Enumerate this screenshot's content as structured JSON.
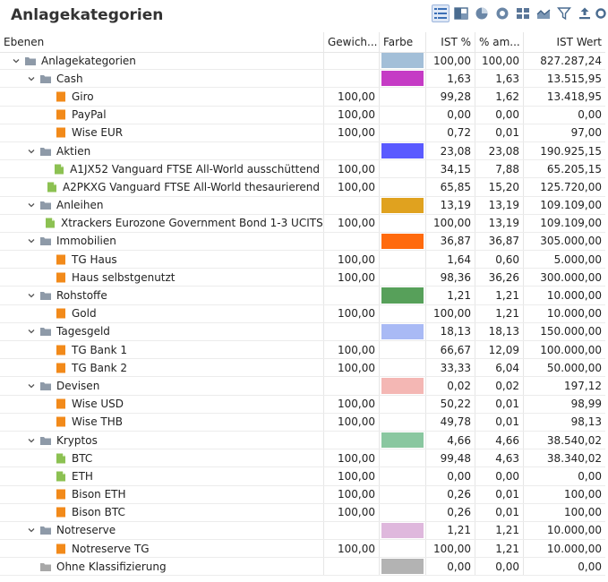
{
  "title": "Anlagekategorien",
  "toolbar": [
    {
      "name": "tree-view-icon",
      "active": true
    },
    {
      "name": "treemap-icon",
      "active": false
    },
    {
      "name": "pie-chart-icon",
      "active": false
    },
    {
      "name": "donut-chart-icon",
      "active": false
    },
    {
      "name": "grid-tiles-icon",
      "active": false
    },
    {
      "name": "area-chart-icon",
      "active": false
    },
    {
      "name": "filter-icon",
      "active": false
    },
    {
      "name": "export-icon",
      "active": false
    },
    {
      "name": "settings-icon",
      "active": false
    }
  ],
  "columns": {
    "name": "Ebenen",
    "weight": "Gewich...",
    "color": "Farbe",
    "ist": "IST %",
    "am": "% am...",
    "wert": "IST Wert"
  },
  "rows": [
    {
      "level": 0,
      "type": "folder",
      "expand": true,
      "name": "Anlagekategorien",
      "weight": "",
      "color": "#a3bfd8",
      "ist": "100,00",
      "am": "100,00",
      "wert": "827.287,24"
    },
    {
      "level": 1,
      "type": "folder",
      "expand": true,
      "name": "Cash",
      "weight": "",
      "color": "#c53bc5",
      "ist": "1,63",
      "am": "1,63",
      "wert": "13.515,95"
    },
    {
      "level": 2,
      "type": "account",
      "name": "Giro",
      "weight": "100,00",
      "color": "",
      "ist": "99,28",
      "am": "1,62",
      "wert": "13.418,95"
    },
    {
      "level": 2,
      "type": "account",
      "name": "PayPal",
      "weight": "100,00",
      "color": "",
      "ist": "0,00",
      "am": "0,00",
      "wert": "0,00"
    },
    {
      "level": 2,
      "type": "account",
      "name": "Wise EUR",
      "weight": "100,00",
      "color": "",
      "ist": "0,72",
      "am": "0,01",
      "wert": "97,00"
    },
    {
      "level": 1,
      "type": "folder",
      "expand": true,
      "name": "Aktien",
      "weight": "",
      "color": "#5a5aff",
      "ist": "23,08",
      "am": "23,08",
      "wert": "190.925,15"
    },
    {
      "level": 2,
      "type": "security",
      "name": "A1JX52 Vanguard FTSE All-World ausschüttend",
      "weight": "100,00",
      "color": "",
      "ist": "34,15",
      "am": "7,88",
      "wert": "65.205,15"
    },
    {
      "level": 2,
      "type": "security",
      "name": "A2PKXG Vanguard FTSE All-World thesaurierend",
      "weight": "100,00",
      "color": "",
      "ist": "65,85",
      "am": "15,20",
      "wert": "125.720,00"
    },
    {
      "level": 1,
      "type": "folder",
      "expand": true,
      "name": "Anleihen",
      "weight": "",
      "color": "#e0a21f",
      "ist": "13,19",
      "am": "13,19",
      "wert": "109.109,00"
    },
    {
      "level": 2,
      "type": "security",
      "name": "Xtrackers Eurozone Government Bond 1-3 UCITS",
      "weight": "100,00",
      "color": "",
      "ist": "100,00",
      "am": "13,19",
      "wert": "109.109,00"
    },
    {
      "level": 1,
      "type": "folder",
      "expand": true,
      "name": "Immobilien",
      "weight": "",
      "color": "#ff6a0d",
      "ist": "36,87",
      "am": "36,87",
      "wert": "305.000,00"
    },
    {
      "level": 2,
      "type": "account",
      "name": "TG Haus",
      "weight": "100,00",
      "color": "",
      "ist": "1,64",
      "am": "0,60",
      "wert": "5.000,00"
    },
    {
      "level": 2,
      "type": "account",
      "name": "Haus selbstgenutzt",
      "weight": "100,00",
      "color": "",
      "ist": "98,36",
      "am": "36,26",
      "wert": "300.000,00"
    },
    {
      "level": 1,
      "type": "folder",
      "expand": true,
      "name": "Rohstoffe",
      "weight": "",
      "color": "#57a05a",
      "ist": "1,21",
      "am": "1,21",
      "wert": "10.000,00"
    },
    {
      "level": 2,
      "type": "account",
      "name": "Gold",
      "weight": "100,00",
      "color": "",
      "ist": "100,00",
      "am": "1,21",
      "wert": "10.000,00"
    },
    {
      "level": 1,
      "type": "folder",
      "expand": true,
      "name": "Tagesgeld",
      "weight": "",
      "color": "#a9baf5",
      "ist": "18,13",
      "am": "18,13",
      "wert": "150.000,00"
    },
    {
      "level": 2,
      "type": "account",
      "name": "TG Bank 1",
      "weight": "100,00",
      "color": "",
      "ist": "66,67",
      "am": "12,09",
      "wert": "100.000,00"
    },
    {
      "level": 2,
      "type": "account",
      "name": "TG Bank 2",
      "weight": "100,00",
      "color": "",
      "ist": "33,33",
      "am": "6,04",
      "wert": "50.000,00"
    },
    {
      "level": 1,
      "type": "folder",
      "expand": true,
      "name": "Devisen",
      "weight": "",
      "color": "#f4b7b4",
      "ist": "0,02",
      "am": "0,02",
      "wert": "197,12"
    },
    {
      "level": 2,
      "type": "account",
      "name": "Wise USD",
      "weight": "100,00",
      "color": "",
      "ist": "50,22",
      "am": "0,01",
      "wert": "98,99"
    },
    {
      "level": 2,
      "type": "account",
      "name": "Wise THB",
      "weight": "100,00",
      "color": "",
      "ist": "49,78",
      "am": "0,01",
      "wert": "98,13"
    },
    {
      "level": 1,
      "type": "folder",
      "expand": true,
      "name": "Kryptos",
      "weight": "",
      "color": "#8ac7a0",
      "ist": "4,66",
      "am": "4,66",
      "wert": "38.540,02"
    },
    {
      "level": 2,
      "type": "security",
      "name": "BTC",
      "weight": "100,00",
      "color": "",
      "ist": "99,48",
      "am": "4,63",
      "wert": "38.340,02"
    },
    {
      "level": 2,
      "type": "security",
      "name": "ETH",
      "weight": "100,00",
      "color": "",
      "ist": "0,00",
      "am": "0,00",
      "wert": "0,00"
    },
    {
      "level": 2,
      "type": "account",
      "name": "Bison ETH",
      "weight": "100,00",
      "color": "",
      "ist": "0,26",
      "am": "0,01",
      "wert": "100,00"
    },
    {
      "level": 2,
      "type": "account",
      "name": "Bison BTC",
      "weight": "100,00",
      "color": "",
      "ist": "0,26",
      "am": "0,01",
      "wert": "100,00"
    },
    {
      "level": 1,
      "type": "folder",
      "expand": true,
      "name": "Notreserve",
      "weight": "",
      "color": "#dfb8dd",
      "ist": "1,21",
      "am": "1,21",
      "wert": "10.000,00"
    },
    {
      "level": 2,
      "type": "account",
      "name": "Notreserve TG",
      "weight": "100,00",
      "color": "",
      "ist": "100,00",
      "am": "1,21",
      "wert": "10.000,00"
    },
    {
      "level": 1,
      "type": "folder-grey",
      "expand": false,
      "name": "Ohne Klassifizierung",
      "weight": "",
      "color": "#b3b3b3",
      "ist": "0,00",
      "am": "0,00",
      "wert": "0,00"
    }
  ],
  "icon_colors": {
    "folder": "#8e9aa8",
    "folder_grey": "#a8a8a8",
    "account": "#f28a1a",
    "security": "#8cc152"
  }
}
